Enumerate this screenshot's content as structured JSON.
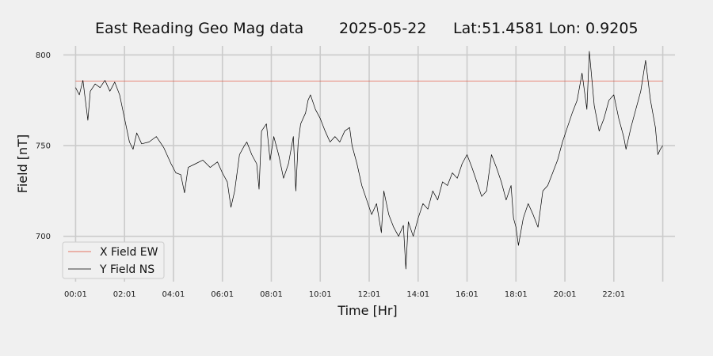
{
  "title": {
    "station": "East Reading Geo Mag data",
    "date": "2025-05-22",
    "location": "Lat:51.4581  Lon: 0.9205"
  },
  "chart_data": {
    "type": "line",
    "xlabel": "Time  [Hr]",
    "ylabel": "Field  [nT]",
    "xticks": [
      "00:01",
      "02:01",
      "04:01",
      "06:01",
      "08:01",
      "10:01",
      "12:01",
      "14:01",
      "16:01",
      "18:01",
      "20:01",
      "22:01"
    ],
    "yticks": [
      700,
      750,
      800
    ],
    "xlim": [
      -0.5,
      24.5
    ],
    "ylim": [
      675,
      805
    ],
    "grid": true,
    "legend_position": "lower-left",
    "series": [
      {
        "name": "X Field EW",
        "color": "#e24a33",
        "points": [
          [
            0.0,
            785.5
          ],
          [
            24.0,
            785.5
          ]
        ]
      },
      {
        "name": "Y Field NS",
        "color": "#000000",
        "points": [
          [
            0.0,
            782
          ],
          [
            0.15,
            778
          ],
          [
            0.3,
            786
          ],
          [
            0.4,
            775
          ],
          [
            0.5,
            764
          ],
          [
            0.6,
            780
          ],
          [
            0.8,
            784
          ],
          [
            1.0,
            782
          ],
          [
            1.2,
            786
          ],
          [
            1.4,
            780
          ],
          [
            1.6,
            785
          ],
          [
            1.8,
            778
          ],
          [
            2.0,
            765
          ],
          [
            2.2,
            752
          ],
          [
            2.35,
            748
          ],
          [
            2.5,
            757
          ],
          [
            2.7,
            751
          ],
          [
            3.0,
            752
          ],
          [
            3.3,
            755
          ],
          [
            3.6,
            749
          ],
          [
            3.9,
            740
          ],
          [
            4.1,
            735
          ],
          [
            4.3,
            734
          ],
          [
            4.45,
            724
          ],
          [
            4.6,
            738
          ],
          [
            4.9,
            740
          ],
          [
            5.2,
            742
          ],
          [
            5.5,
            738
          ],
          [
            5.8,
            741
          ],
          [
            6.0,
            735
          ],
          [
            6.2,
            730
          ],
          [
            6.35,
            716
          ],
          [
            6.5,
            725
          ],
          [
            6.7,
            745
          ],
          [
            6.9,
            750
          ],
          [
            7.0,
            752
          ],
          [
            7.2,
            745
          ],
          [
            7.4,
            740
          ],
          [
            7.5,
            726
          ],
          [
            7.6,
            758
          ],
          [
            7.8,
            762
          ],
          [
            7.95,
            742
          ],
          [
            8.1,
            755
          ],
          [
            8.3,
            745
          ],
          [
            8.5,
            732
          ],
          [
            8.7,
            740
          ],
          [
            8.9,
            755
          ],
          [
            9.0,
            725
          ],
          [
            9.1,
            752
          ],
          [
            9.2,
            762
          ],
          [
            9.4,
            768
          ],
          [
            9.5,
            775
          ],
          [
            9.6,
            778
          ],
          [
            9.8,
            770
          ],
          [
            10.0,
            765
          ],
          [
            10.2,
            758
          ],
          [
            10.4,
            752
          ],
          [
            10.6,
            755
          ],
          [
            10.8,
            752
          ],
          [
            11.0,
            758
          ],
          [
            11.2,
            760
          ],
          [
            11.3,
            750
          ],
          [
            11.5,
            740
          ],
          [
            11.7,
            728
          ],
          [
            11.9,
            720
          ],
          [
            12.1,
            712
          ],
          [
            12.3,
            718
          ],
          [
            12.5,
            702
          ],
          [
            12.6,
            725
          ],
          [
            12.8,
            712
          ],
          [
            13.0,
            705
          ],
          [
            13.2,
            700
          ],
          [
            13.4,
            706
          ],
          [
            13.5,
            682
          ],
          [
            13.6,
            708
          ],
          [
            13.8,
            700
          ],
          [
            14.0,
            710
          ],
          [
            14.2,
            718
          ],
          [
            14.4,
            715
          ],
          [
            14.6,
            725
          ],
          [
            14.8,
            720
          ],
          [
            15.0,
            730
          ],
          [
            15.2,
            728
          ],
          [
            15.4,
            735
          ],
          [
            15.6,
            732
          ],
          [
            15.8,
            740
          ],
          [
            16.0,
            745
          ],
          [
            16.2,
            738
          ],
          [
            16.4,
            730
          ],
          [
            16.6,
            722
          ],
          [
            16.8,
            725
          ],
          [
            17.0,
            745
          ],
          [
            17.2,
            738
          ],
          [
            17.4,
            730
          ],
          [
            17.6,
            720
          ],
          [
            17.8,
            728
          ],
          [
            17.9,
            710
          ],
          [
            18.0,
            705
          ],
          [
            18.1,
            695
          ],
          [
            18.3,
            710
          ],
          [
            18.5,
            718
          ],
          [
            18.7,
            712
          ],
          [
            18.9,
            705
          ],
          [
            19.1,
            725
          ],
          [
            19.3,
            728
          ],
          [
            19.5,
            735
          ],
          [
            19.7,
            742
          ],
          [
            19.9,
            752
          ],
          [
            20.1,
            760
          ],
          [
            20.3,
            768
          ],
          [
            20.5,
            775
          ],
          [
            20.7,
            790
          ],
          [
            20.9,
            770
          ],
          [
            21.0,
            802
          ],
          [
            21.2,
            772
          ],
          [
            21.4,
            758
          ],
          [
            21.6,
            765
          ],
          [
            21.8,
            775
          ],
          [
            22.0,
            778
          ],
          [
            22.2,
            765
          ],
          [
            22.4,
            755
          ],
          [
            22.5,
            748
          ],
          [
            22.7,
            760
          ],
          [
            22.9,
            770
          ],
          [
            23.1,
            780
          ],
          [
            23.3,
            797
          ],
          [
            23.5,
            775
          ],
          [
            23.7,
            760
          ],
          [
            23.8,
            745
          ],
          [
            23.9,
            748
          ],
          [
            24.0,
            750
          ]
        ]
      }
    ]
  }
}
